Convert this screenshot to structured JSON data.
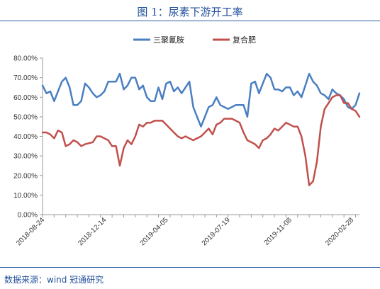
{
  "title": "图 1：尿素下游开工率",
  "source": "数据来源：wind 冠通研究",
  "chart_data": {
    "type": "line",
    "ylim": [
      0,
      0.8
    ],
    "yticks": [
      "0.00%",
      "10.00%",
      "20.00%",
      "30.00%",
      "40.00%",
      "50.00%",
      "60.00%",
      "70.00%",
      "80.00%"
    ],
    "x_tick_labels": [
      "2018-08-24",
      "2018-12-14",
      "2019-04-05",
      "2019-07-19",
      "2019-11-08",
      "2020-02-28"
    ],
    "grid": false,
    "legend_position": "top-center",
    "series": [
      {
        "name": "三聚氰胺",
        "color": "#4a7fc1",
        "values": [
          0.66,
          0.62,
          0.63,
          0.58,
          0.63,
          0.68,
          0.7,
          0.65,
          0.56,
          0.56,
          0.58,
          0.67,
          0.65,
          0.62,
          0.6,
          0.61,
          0.63,
          0.68,
          0.68,
          0.68,
          0.72,
          0.64,
          0.66,
          0.7,
          0.7,
          0.64,
          0.66,
          0.6,
          0.58,
          0.58,
          0.65,
          0.59,
          0.67,
          0.68,
          0.63,
          0.65,
          0.62,
          0.65,
          0.68,
          0.55,
          0.5,
          0.45,
          0.5,
          0.55,
          0.56,
          0.6,
          0.56,
          0.55,
          0.54,
          0.55,
          0.56,
          0.56,
          0.56,
          0.5,
          0.67,
          0.68,
          0.62,
          0.67,
          0.72,
          0.7,
          0.64,
          0.64,
          0.63,
          0.65,
          0.65,
          0.61,
          0.63,
          0.6,
          0.66,
          0.72,
          0.68,
          0.66,
          0.62,
          0.61,
          0.59,
          0.64,
          0.62,
          0.61,
          0.59,
          0.55,
          0.54,
          0.56,
          0.62
        ]
      },
      {
        "name": "复合肥",
        "color": "#c0504d",
        "values": [
          0.42,
          0.42,
          0.41,
          0.39,
          0.43,
          0.42,
          0.35,
          0.36,
          0.38,
          0.37,
          0.35,
          0.36,
          0.365,
          0.37,
          0.4,
          0.4,
          0.39,
          0.38,
          0.35,
          0.35,
          0.25,
          0.34,
          0.38,
          0.36,
          0.4,
          0.46,
          0.45,
          0.47,
          0.47,
          0.48,
          0.48,
          0.48,
          0.46,
          0.44,
          0.42,
          0.4,
          0.39,
          0.4,
          0.39,
          0.38,
          0.39,
          0.4,
          0.42,
          0.44,
          0.41,
          0.46,
          0.47,
          0.49,
          0.49,
          0.49,
          0.48,
          0.47,
          0.42,
          0.38,
          0.37,
          0.36,
          0.34,
          0.38,
          0.39,
          0.41,
          0.44,
          0.43,
          0.45,
          0.47,
          0.46,
          0.45,
          0.45,
          0.4,
          0.3,
          0.15,
          0.17,
          0.27,
          0.45,
          0.54,
          0.57,
          0.6,
          0.61,
          0.61,
          0.57,
          0.57,
          0.54,
          0.53,
          0.5
        ]
      }
    ]
  }
}
